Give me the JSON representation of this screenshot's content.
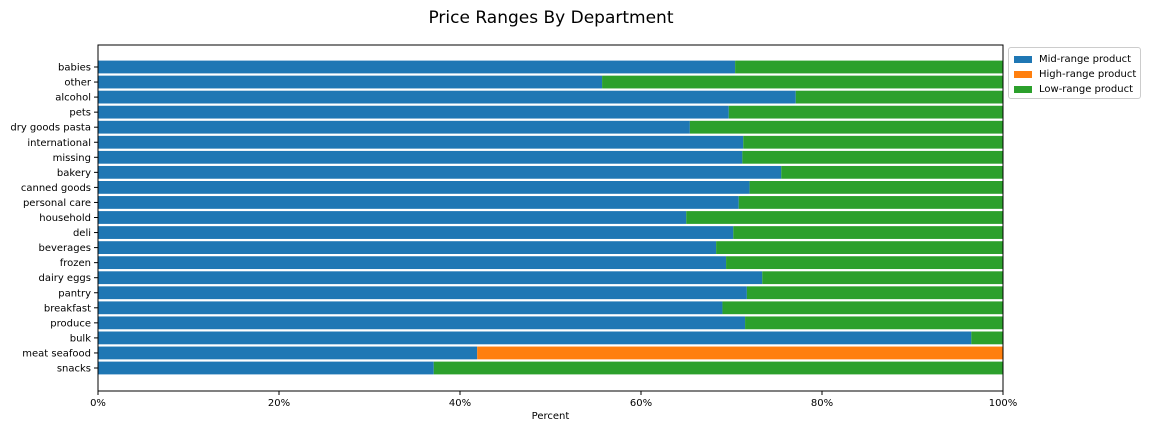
{
  "chart_data": {
    "type": "bar",
    "orientation": "horizontal",
    "stacked": true,
    "title": "Price Ranges By Department",
    "xlabel": "Percent",
    "ylabel": "",
    "xlim": [
      0,
      100
    ],
    "xticks": [
      "0%",
      "20%",
      "40%",
      "60%",
      "80%",
      "100%"
    ],
    "categories": [
      "babies",
      "other",
      "alcohol",
      "pets",
      "dry goods pasta",
      "international",
      "missing",
      "bakery",
      "canned goods",
      "personal care",
      "household",
      "deli",
      "beverages",
      "frozen",
      "dairy eggs",
      "pantry",
      "breakfast",
      "produce",
      "bulk",
      "meat seafood",
      "snacks"
    ],
    "series": [
      {
        "name": "Mid-range product",
        "color": "#1f77b4",
        "values": [
          70.4,
          55.7,
          77.1,
          69.7,
          65.4,
          71.3,
          71.2,
          75.5,
          72.0,
          70.8,
          65.0,
          70.2,
          68.3,
          69.4,
          73.4,
          71.7,
          69.0,
          71.5,
          96.5,
          41.9,
          37.1
        ]
      },
      {
        "name": "High-range product",
        "color": "#ff7f0e",
        "values": [
          0,
          0,
          0,
          0,
          0,
          0,
          0,
          0,
          0,
          0,
          0,
          0,
          0,
          0,
          0,
          0,
          0,
          0,
          0,
          58.1,
          0
        ]
      },
      {
        "name": "Low-range product",
        "color": "#2ca02c",
        "values": [
          29.6,
          44.3,
          22.9,
          30.3,
          34.6,
          28.7,
          28.8,
          24.5,
          28.0,
          29.2,
          35.0,
          29.8,
          31.7,
          30.6,
          26.6,
          28.3,
          31.0,
          28.5,
          3.5,
          0,
          62.9
        ]
      }
    ],
    "legend_position": "upper right, outside plot",
    "grid": false
  }
}
